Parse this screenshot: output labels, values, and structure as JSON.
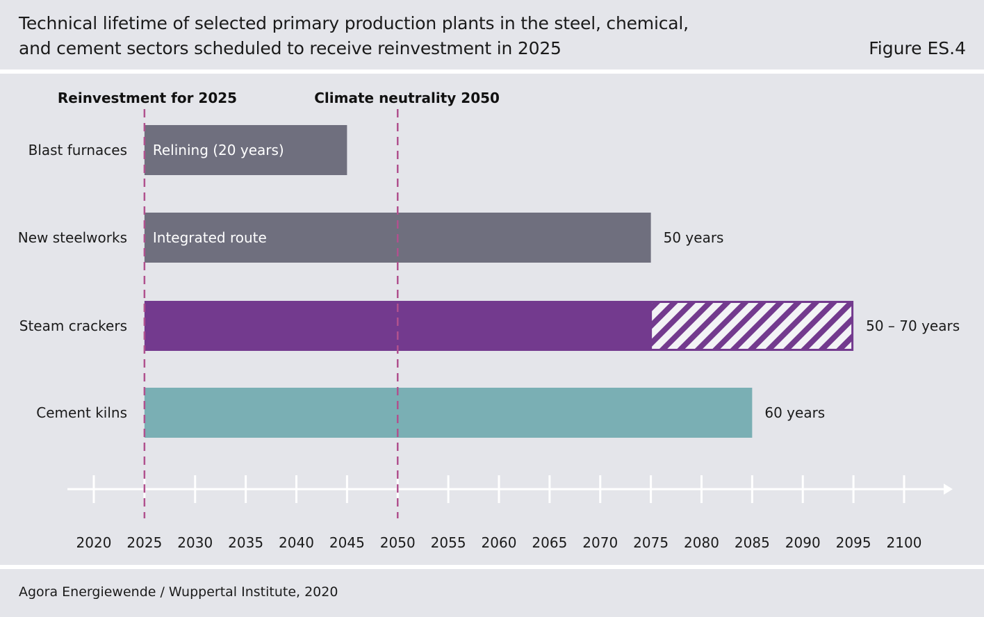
{
  "header": {
    "title": "Technical lifetime of selected primary production plants in the steel, chemical,\nand cement sectors scheduled to receive reinvestment in 2025",
    "figure_label": "Figure ES.4"
  },
  "footer": {
    "source": "Agora Energiewende / Wuppertal Institute, 2020"
  },
  "colors": {
    "background": "#e4e5ea",
    "grey_bar": "#6f6f7e",
    "purple_bar": "#733a8e",
    "teal_bar": "#7aafb4",
    "marker_line": "#b0518e"
  },
  "chart_data": {
    "type": "bar",
    "orientation": "horizontal",
    "title": "Technical lifetime of selected primary production plants in the steel, chemical, and cement sectors scheduled to receive reinvestment in 2025",
    "xlabel": "",
    "ylabel": "",
    "xlim": [
      2020,
      2100
    ],
    "x_ticks": [
      2020,
      2025,
      2030,
      2035,
      2040,
      2045,
      2050,
      2055,
      2060,
      2065,
      2070,
      2075,
      2080,
      2085,
      2090,
      2095,
      2100
    ],
    "markers": [
      {
        "year": 2025,
        "label": "Reinvestment for 2025"
      },
      {
        "year": 2050,
        "label": "Climate neutrality 2050"
      }
    ],
    "bars": [
      {
        "category": "Blast furnaces",
        "start": 2025,
        "end": 2045,
        "inner_label": "Relining (20 years)",
        "end_label": "",
        "color_key": "grey_bar"
      },
      {
        "category": "New steelworks",
        "start": 2025,
        "end": 2075,
        "inner_label": "Integrated route",
        "end_label": "50 years",
        "color_key": "grey_bar"
      },
      {
        "category": "Steam crackers",
        "start": 2025,
        "end": 2075,
        "hatched_end": 2095,
        "inner_label": "",
        "end_label": "50 – 70 years",
        "color_key": "purple_bar"
      },
      {
        "category": "Cement kilns",
        "start": 2025,
        "end": 2085,
        "inner_label": "",
        "end_label": "60 years",
        "color_key": "teal_bar"
      }
    ]
  }
}
